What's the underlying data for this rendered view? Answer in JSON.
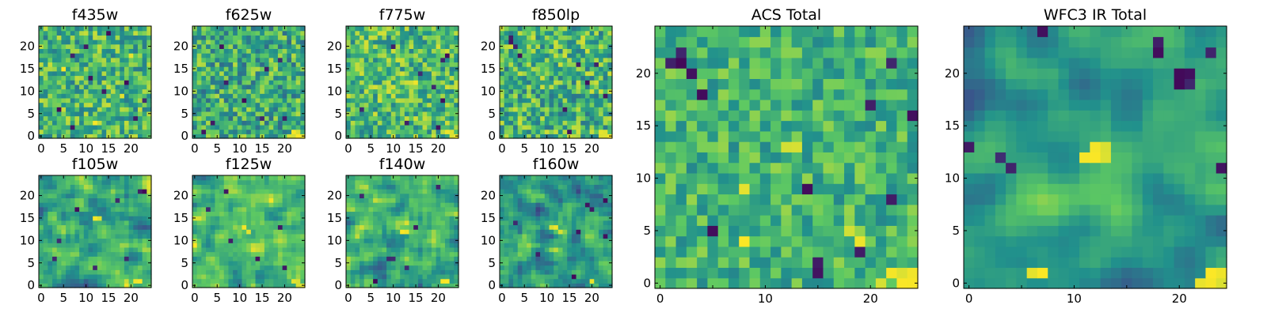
{
  "figure": {
    "colormap": "viridis",
    "colormap_stops": [
      "#440154",
      "#3b528b",
      "#21918c",
      "#5ec962",
      "#fde725"
    ]
  },
  "chart_data": [
    {
      "type": "heatmap",
      "title": "f435w",
      "grid_size": 25,
      "xlim": [
        0,
        24
      ],
      "ylim": [
        0,
        24
      ],
      "xticks": [
        0,
        5,
        10,
        15,
        20
      ],
      "yticks": [
        0,
        5,
        10,
        15,
        20
      ],
      "mean_level": 0.66,
      "noise": 0.16,
      "smoothness": 0,
      "dark_pixels": [
        [
          11,
          13
        ],
        [
          7,
          18
        ],
        [
          15,
          23
        ],
        [
          7,
          2
        ],
        [
          14,
          10
        ],
        [
          4,
          6
        ],
        [
          21,
          4
        ],
        [
          10,
          20
        ],
        [
          19,
          12
        ],
        [
          23,
          8
        ]
      ],
      "bright_pixels": [
        [
          5,
          15
        ],
        [
          20,
          18
        ],
        [
          12,
          3
        ],
        [
          18,
          9
        ]
      ]
    },
    {
      "type": "heatmap",
      "title": "f625w",
      "grid_size": 25,
      "xlim": [
        0,
        24
      ],
      "ylim": [
        0,
        24
      ],
      "xticks": [
        0,
        5,
        10,
        15,
        20
      ],
      "yticks": [
        0,
        5,
        10,
        15,
        20
      ],
      "mean_level": 0.62,
      "noise": 0.17,
      "smoothness": 0,
      "dark_pixels": [
        [
          7,
          12
        ],
        [
          6,
          20
        ],
        [
          19,
          17
        ],
        [
          15,
          4
        ],
        [
          20,
          4
        ],
        [
          4,
          3
        ],
        [
          11,
          8
        ],
        [
          2,
          1
        ],
        [
          16,
          15
        ]
      ],
      "bright_pixels": [
        [
          22,
          1
        ],
        [
          23,
          1
        ],
        [
          21,
          0
        ],
        [
          24,
          0
        ],
        [
          22,
          0
        ],
        [
          23,
          0
        ]
      ]
    },
    {
      "type": "heatmap",
      "title": "f775w",
      "grid_size": 25,
      "xlim": [
        0,
        24
      ],
      "ylim": [
        0,
        24
      ],
      "xticks": [
        0,
        5,
        10,
        15,
        20
      ],
      "yticks": [
        0,
        5,
        10,
        15,
        20
      ],
      "mean_level": 0.68,
      "noise": 0.16,
      "smoothness": 0,
      "dark_pixels": [
        [
          22,
          18
        ],
        [
          21,
          17
        ],
        [
          19,
          11
        ],
        [
          21,
          8
        ],
        [
          10,
          20
        ],
        [
          3,
          6
        ],
        [
          13,
          3
        ],
        [
          20,
          2
        ],
        [
          16,
          14
        ]
      ],
      "bright_pixels": [
        [
          22,
          1
        ],
        [
          23,
          1
        ],
        [
          24,
          0
        ],
        [
          23,
          0
        ],
        [
          15,
          12
        ],
        [
          9,
          10
        ]
      ]
    },
    {
      "type": "heatmap",
      "title": "f850lp",
      "grid_size": 25,
      "xlim": [
        0,
        24
      ],
      "ylim": [
        0,
        24
      ],
      "xticks": [
        0,
        5,
        10,
        15,
        20
      ],
      "yticks": [
        0,
        5,
        10,
        15,
        20
      ],
      "mean_level": 0.66,
      "noise": 0.17,
      "smoothness": 0,
      "dark_pixels": [
        [
          2,
          22
        ],
        [
          2,
          21
        ],
        [
          3,
          20
        ],
        [
          17,
          16
        ],
        [
          21,
          16
        ],
        [
          15,
          1
        ],
        [
          4,
          18
        ],
        [
          19,
          12
        ],
        [
          14,
          6
        ],
        [
          23,
          9
        ]
      ],
      "bright_pixels": [
        [
          22,
          1
        ],
        [
          23,
          1
        ],
        [
          24,
          0
        ],
        [
          23,
          0
        ],
        [
          22,
          0
        ]
      ]
    },
    {
      "type": "heatmap",
      "title": "f105w",
      "grid_size": 25,
      "xlim": [
        0,
        24
      ],
      "ylim": [
        0,
        24
      ],
      "xticks": [
        0,
        5,
        10,
        15,
        20
      ],
      "yticks": [
        0,
        5,
        10,
        15,
        20
      ],
      "mean_level": 0.6,
      "noise": 0.16,
      "smoothness": 1,
      "dark_pixels": [
        [
          4,
          10
        ],
        [
          17,
          19
        ],
        [
          22,
          21
        ],
        [
          23,
          21
        ],
        [
          12,
          4
        ],
        [
          3,
          6
        ],
        [
          19,
          6
        ],
        [
          8,
          17
        ]
      ],
      "bright_pixels": [
        [
          12,
          15
        ],
        [
          13,
          15
        ],
        [
          21,
          1
        ],
        [
          22,
          1
        ]
      ]
    },
    {
      "type": "heatmap",
      "title": "f125w",
      "grid_size": 25,
      "xlim": [
        0,
        24
      ],
      "ylim": [
        0,
        24
      ],
      "xticks": [
        0,
        5,
        10,
        15,
        20
      ],
      "yticks": [
        0,
        5,
        10,
        15,
        20
      ],
      "mean_level": 0.66,
      "noise": 0.15,
      "smoothness": 1,
      "dark_pixels": [
        [
          19,
          13
        ],
        [
          7,
          21
        ],
        [
          8,
          10
        ],
        [
          20,
          4
        ],
        [
          3,
          17
        ],
        [
          14,
          6
        ]
      ],
      "bright_pixels": [
        [
          22,
          1
        ],
        [
          23,
          1
        ],
        [
          24,
          0
        ],
        [
          23,
          0
        ],
        [
          11,
          13
        ],
        [
          12,
          12
        ]
      ]
    },
    {
      "type": "heatmap",
      "title": "f140w",
      "grid_size": 25,
      "xlim": [
        0,
        24
      ],
      "ylim": [
        0,
        24
      ],
      "xticks": [
        0,
        5,
        10,
        15,
        20
      ],
      "yticks": [
        0,
        5,
        10,
        15,
        20
      ],
      "mean_level": 0.64,
      "noise": 0.15,
      "smoothness": 1,
      "dark_pixels": [
        [
          9,
          6
        ],
        [
          10,
          6
        ],
        [
          15,
          13
        ],
        [
          3,
          20
        ],
        [
          13,
          4
        ],
        [
          20,
          22
        ],
        [
          6,
          1
        ]
      ],
      "bright_pixels": [
        [
          12,
          12
        ],
        [
          13,
          12
        ],
        [
          21,
          1
        ],
        [
          22,
          1
        ]
      ]
    },
    {
      "type": "heatmap",
      "title": "f160w",
      "grid_size": 25,
      "xlim": [
        0,
        24
      ],
      "ylim": [
        0,
        24
      ],
      "xticks": [
        0,
        5,
        10,
        15,
        20
      ],
      "yticks": [
        0,
        5,
        10,
        15,
        20
      ],
      "mean_level": 0.56,
      "noise": 0.16,
      "smoothness": 1,
      "dark_pixels": [
        [
          19,
          18
        ],
        [
          20,
          17
        ],
        [
          17,
          12
        ],
        [
          23,
          11
        ],
        [
          16,
          2
        ],
        [
          23,
          19
        ],
        [
          8,
          7
        ],
        [
          3,
          14
        ]
      ],
      "bright_pixels": [
        [
          11,
          13
        ],
        [
          12,
          13
        ],
        [
          13,
          12
        ],
        [
          20,
          1
        ]
      ]
    },
    {
      "type": "heatmap",
      "title": "ACS Total",
      "grid_size": 25,
      "xlim": [
        0,
        24
      ],
      "ylim": [
        0,
        24
      ],
      "xticks": [
        0,
        10,
        20
      ],
      "minor_xticks": [
        5,
        15
      ],
      "yticks": [
        0,
        5,
        10,
        15,
        20
      ],
      "mean_level": 0.65,
      "noise": 0.12,
      "smoothness": 0,
      "dark_pixels": [
        [
          2,
          22
        ],
        [
          2,
          21
        ],
        [
          3,
          20
        ],
        [
          1,
          21
        ],
        [
          4,
          18
        ],
        [
          20,
          17
        ],
        [
          24,
          16
        ],
        [
          22,
          21
        ],
        [
          22,
          8
        ],
        [
          15,
          2
        ],
        [
          15,
          1
        ],
        [
          5,
          5
        ],
        [
          14,
          9
        ],
        [
          19,
          3
        ]
      ],
      "bright_pixels": [
        [
          22,
          1
        ],
        [
          23,
          1
        ],
        [
          24,
          1
        ],
        [
          23,
          0
        ],
        [
          24,
          0
        ],
        [
          21,
          0
        ],
        [
          19,
          4
        ],
        [
          18,
          5
        ],
        [
          8,
          9
        ],
        [
          13,
          13
        ],
        [
          12,
          13
        ],
        [
          8,
          4
        ]
      ]
    },
    {
      "type": "heatmap",
      "title": "WFC3 IR Total",
      "grid_size": 25,
      "xlim": [
        0,
        24
      ],
      "ylim": [
        0,
        24
      ],
      "xticks": [
        0,
        10,
        20
      ],
      "minor_xticks": [
        5,
        15
      ],
      "yticks": [
        0,
        5,
        10,
        15,
        20
      ],
      "mean_level": 0.55,
      "noise": 0.08,
      "smoothness": 2,
      "dark_pixels": [
        [
          7,
          24
        ],
        [
          18,
          23
        ],
        [
          18,
          22
        ],
        [
          20,
          20
        ],
        [
          21,
          20
        ],
        [
          20,
          19
        ],
        [
          21,
          19
        ],
        [
          4,
          11
        ],
        [
          3,
          12
        ],
        [
          24,
          11
        ],
        [
          0,
          13
        ],
        [
          23,
          22
        ]
      ],
      "bright_pixels": [
        [
          12,
          13
        ],
        [
          13,
          13
        ],
        [
          12,
          12
        ],
        [
          13,
          12
        ],
        [
          11,
          12
        ],
        [
          23,
          1
        ],
        [
          24,
          1
        ],
        [
          23,
          0
        ],
        [
          24,
          0
        ],
        [
          6,
          1
        ],
        [
          7,
          1
        ],
        [
          22,
          0
        ]
      ]
    }
  ]
}
